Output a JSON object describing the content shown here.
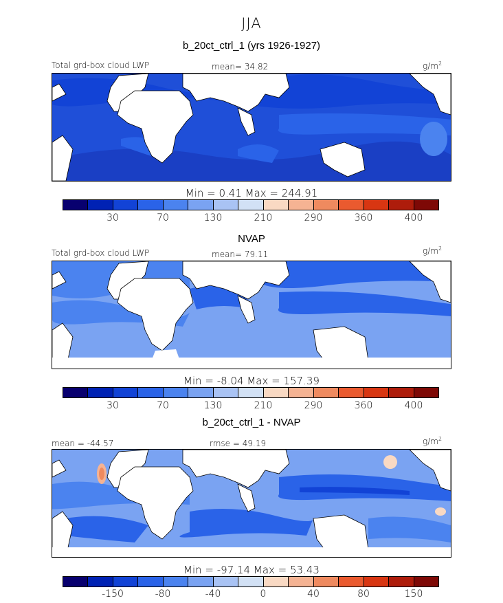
{
  "figure": {
    "season": "JJA",
    "units_label": "g/m",
    "units_sup": "2"
  },
  "colors": [
    "#08006f",
    "#0022b4",
    "#1243d6",
    "#2a63e8",
    "#4b83ef",
    "#7aa3f2",
    "#a9c3f4",
    "#d2e1f5",
    "#f9d9c3",
    "#f5b393",
    "#ef8a5f",
    "#ea5a2f",
    "#d83612",
    "#ae1c0b",
    "#7e0906"
  ],
  "panels": [
    {
      "title": "b_20ct_ctrl_1 (yrs 1926-1927)",
      "left_label": "Total grd-box cloud LWP",
      "mid_label": "mean=  34.82",
      "minmax": "Min =    0.41  Max =  244.91",
      "ticks": [
        "30",
        "70",
        "130",
        "210",
        "290",
        "360",
        "400"
      ]
    },
    {
      "title": "NVAP",
      "left_label": "Total grd-box cloud LWP",
      "mid_label": "mean=  79.11",
      "minmax": "Min =   -8.04  Max =  157.39",
      "ticks": [
        "30",
        "70",
        "130",
        "210",
        "290",
        "360",
        "400"
      ]
    },
    {
      "title": "b_20ct_ctrl_1 - NVAP",
      "left_label": "mean = -44.57",
      "mid_label": "rmse =  49.19",
      "minmax": "Min =  -97.14  Max =   53.43",
      "ticks": [
        "-150",
        "-80",
        "-40",
        "0",
        "40",
        "80",
        "150"
      ]
    }
  ]
}
